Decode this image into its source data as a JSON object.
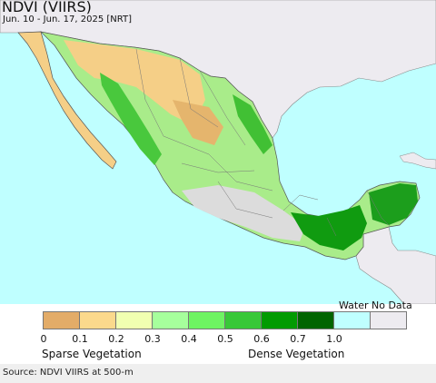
{
  "header": {
    "title": "NDVI (VIIRS)",
    "subtitle": "Jun. 10 - Jun. 17, 2025 [NRT]"
  },
  "legend": {
    "water_label": "Water",
    "nodata_label": "No Data",
    "swatches": [
      {
        "color": "#e3ac68"
      },
      {
        "color": "#fbd98c"
      },
      {
        "color": "#f1ffb1"
      },
      {
        "color": "#a6ff9c"
      },
      {
        "color": "#6ef462"
      },
      {
        "color": "#38c838"
      },
      {
        "color": "#029b02"
      },
      {
        "color": "#016401"
      },
      {
        "color": "#bfffff"
      },
      {
        "color": "#edebf0"
      }
    ],
    "ticks": [
      "0",
      "0.1",
      "0.2",
      "0.3",
      "0.4",
      "0.5",
      "0.6",
      "0.7",
      "1.0"
    ],
    "sparse_label": "Sparse Vegetation",
    "dense_label": "Dense Vegetation"
  },
  "footer": {
    "source": "Source: NDVI VIIRS at 500-m"
  },
  "colors": {
    "ocean": "#bfffff",
    "foreign_land": "#edebf0",
    "border": "#555555"
  }
}
